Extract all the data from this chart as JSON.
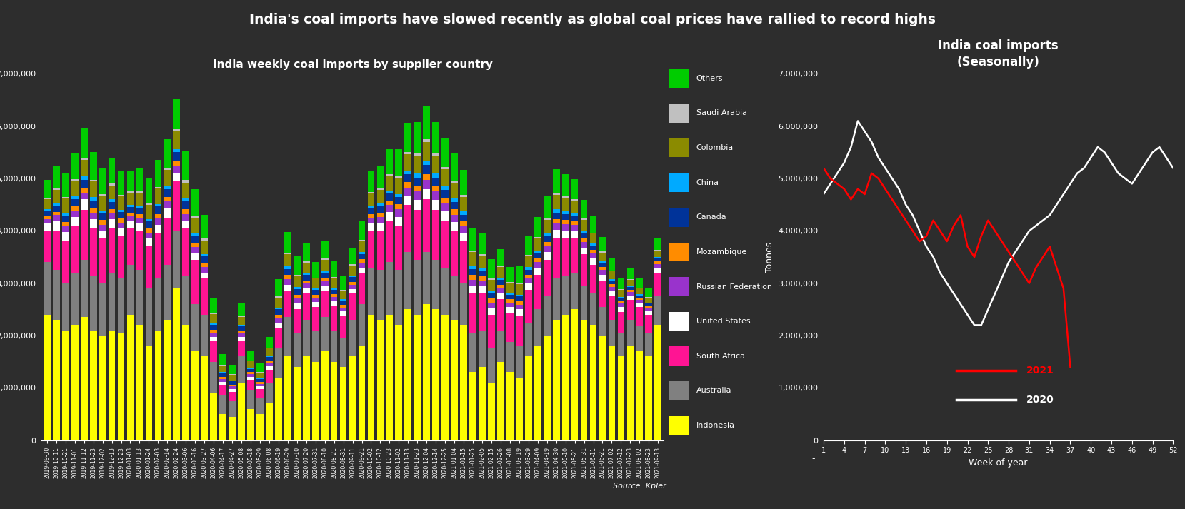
{
  "title": "India's coal imports have slowed recently as global coal prices have rallied to record highs",
  "subtitle_left": "India weekly coal imports by supplier country",
  "subtitle_right": "India coal imports\n(Seasonally)",
  "ylabel_left": "Tonnes",
  "ylabel_right": "Tonnes",
  "xlabel_right": "Week of year",
  "source": "Source: Kpler",
  "background_color": "#2d2d2d",
  "text_color": "#ffffff",
  "categories": [
    "Indonesia",
    "Australia",
    "South Africa",
    "United States",
    "Russian Federation",
    "Mozambique",
    "Canada",
    "China",
    "Colombia",
    "Saudi Arabia",
    "Others"
  ],
  "colors": [
    "#ffff00",
    "#808080",
    "#ff1493",
    "#ffffff",
    "#9933cc",
    "#ff8c00",
    "#003399",
    "#00aaff",
    "#8B8B00",
    "#c0c0c0",
    "#00cc00"
  ],
  "dates": [
    "2019-09-30",
    "2019-10-11",
    "2019-10-21",
    "2019-11-01",
    "2019-11-12",
    "2019-11-23",
    "2019-12-02",
    "2019-12-13",
    "2019-12-23",
    "2020-01-03",
    "2020-01-13",
    "2020-01-24",
    "2020-02-03",
    "2020-02-14",
    "2020-02-24",
    "2020-03-06",
    "2020-03-16",
    "2020-03-27",
    "2020-04-06",
    "2020-04-17",
    "2020-04-27",
    "2020-05-08",
    "2020-05-18",
    "2020-05-29",
    "2020-06-08",
    "2020-06-19",
    "2020-06-29",
    "2020-07-10",
    "2020-07-20",
    "2020-07-31",
    "2020-08-10",
    "2020-08-21",
    "2020-08-31",
    "2020-09-11",
    "2020-09-21",
    "2020-10-02",
    "2020-10-12",
    "2020-10-23",
    "2020-11-02",
    "2020-11-13",
    "2020-11-23",
    "2020-12-04",
    "2020-12-14",
    "2020-12-25",
    "2021-01-04",
    "2021-01-15",
    "2021-01-25",
    "2021-02-05",
    "2021-02-15",
    "2021-02-26",
    "2021-03-08",
    "2021-03-19",
    "2021-03-29",
    "2021-04-09",
    "2021-04-19",
    "2021-04-30",
    "2021-05-10",
    "2021-05-21",
    "2021-05-31",
    "2021-06-11",
    "2021-06-21",
    "2021-07-02",
    "2021-07-12",
    "2021-07-23",
    "2021-08-02",
    "2021-08-23",
    "2021-09-13"
  ],
  "bar_data": {
    "Indonesia": [
      2400000,
      2300000,
      2100000,
      2200000,
      2350000,
      2100000,
      2000000,
      2100000,
      2050000,
      2400000,
      2200000,
      1800000,
      2100000,
      2300000,
      2900000,
      2200000,
      1700000,
      1600000,
      900000,
      500000,
      450000,
      1100000,
      600000,
      500000,
      700000,
      1200000,
      1600000,
      1400000,
      1600000,
      1500000,
      1700000,
      1500000,
      1400000,
      1600000,
      1800000,
      2400000,
      2300000,
      2400000,
      2200000,
      2500000,
      2400000,
      2600000,
      2500000,
      2400000,
      2300000,
      2200000,
      1300000,
      1400000,
      1100000,
      1500000,
      1300000,
      1200000,
      1600000,
      1800000,
      2000000,
      2300000,
      2400000,
      2500000,
      2300000,
      2200000,
      2000000,
      1800000,
      1600000,
      1800000,
      1700000,
      1600000,
      2200000
    ],
    "Australia": [
      1000000,
      950000,
      900000,
      1000000,
      1100000,
      1050000,
      1000000,
      1100000,
      1050000,
      950000,
      1050000,
      1100000,
      1000000,
      1050000,
      1100000,
      950000,
      900000,
      800000,
      600000,
      350000,
      300000,
      500000,
      350000,
      300000,
      400000,
      550000,
      750000,
      650000,
      700000,
      600000,
      650000,
      600000,
      550000,
      700000,
      800000,
      900000,
      950000,
      1000000,
      1050000,
      1100000,
      1050000,
      1000000,
      950000,
      900000,
      850000,
      800000,
      750000,
      700000,
      650000,
      600000,
      580000,
      600000,
      650000,
      700000,
      750000,
      800000,
      750000,
      700000,
      650000,
      600000,
      550000,
      500000,
      450000,
      500000,
      480000,
      460000,
      550000
    ],
    "South Africa": [
      600000,
      750000,
      800000,
      900000,
      950000,
      900000,
      850000,
      850000,
      800000,
      700000,
      750000,
      800000,
      850000,
      900000,
      950000,
      900000,
      850000,
      700000,
      400000,
      200000,
      180000,
      300000,
      200000,
      180000,
      250000,
      400000,
      500000,
      450000,
      500000,
      450000,
      500000,
      460000,
      430000,
      500000,
      600000,
      700000,
      750000,
      800000,
      850000,
      900000,
      950000,
      1000000,
      950000,
      900000,
      850000,
      800000,
      750000,
      700000,
      650000,
      600000,
      560000,
      580000,
      620000,
      660000,
      700000,
      760000,
      700000,
      650000,
      600000,
      550000,
      500000,
      450000,
      400000,
      380000,
      360000,
      340000,
      450000
    ],
    "United States": [
      150000,
      200000,
      180000,
      160000,
      200000,
      180000,
      160000,
      180000,
      160000,
      140000,
      150000,
      160000,
      170000,
      180000,
      160000,
      140000,
      120000,
      100000,
      80000,
      60000,
      50000,
      80000,
      60000,
      50000,
      70000,
      100000,
      120000,
      110000,
      100000,
      90000,
      100000,
      90000,
      80000,
      90000,
      100000,
      140000,
      150000,
      160000,
      170000,
      180000,
      190000,
      200000,
      190000,
      180000,
      170000,
      160000,
      150000,
      140000,
      130000,
      120000,
      110000,
      120000,
      130000,
      140000,
      150000,
      160000,
      150000,
      140000,
      130000,
      120000,
      110000,
      100000,
      90000,
      85000,
      80000,
      75000,
      90000
    ],
    "Russian Federation": [
      80000,
      100000,
      110000,
      120000,
      130000,
      120000,
      110000,
      110000,
      100000,
      90000,
      100000,
      110000,
      120000,
      130000,
      140000,
      130000,
      120000,
      110000,
      80000,
      60000,
      50000,
      70000,
      55000,
      50000,
      65000,
      90000,
      110000,
      100000,
      95000,
      85000,
      90000,
      85000,
      75000,
      85000,
      95000,
      110000,
      120000,
      130000,
      140000,
      150000,
      160000,
      170000,
      160000,
      150000,
      140000,
      130000,
      120000,
      110000,
      100000,
      90000,
      85000,
      90000,
      95000,
      100000,
      110000,
      120000,
      130000,
      120000,
      110000,
      100000,
      90000,
      80000,
      70000,
      65000,
      60000,
      55000,
      70000
    ],
    "Mozambique": [
      50000,
      65000,
      75000,
      85000,
      95000,
      90000,
      85000,
      80000,
      75000,
      65000,
      70000,
      80000,
      85000,
      90000,
      95000,
      90000,
      85000,
      75000,
      55000,
      40000,
      35000,
      45000,
      35000,
      30000,
      40000,
      60000,
      75000,
      65000,
      60000,
      55000,
      60000,
      55000,
      50000,
      55000,
      65000,
      75000,
      80000,
      90000,
      95000,
      100000,
      110000,
      115000,
      110000,
      105000,
      100000,
      90000,
      85000,
      80000,
      75000,
      65000,
      60000,
      65000,
      70000,
      75000,
      80000,
      90000,
      85000,
      80000,
      75000,
      65000,
      60000,
      55000,
      50000,
      48000,
      45000,
      42000,
      55000
    ],
    "Canada": [
      100000,
      120000,
      130000,
      140000,
      150000,
      140000,
      130000,
      130000,
      120000,
      115000,
      120000,
      130000,
      140000,
      150000,
      160000,
      150000,
      140000,
      130000,
      90000,
      70000,
      60000,
      80000,
      65000,
      55000,
      70000,
      100000,
      120000,
      110000,
      100000,
      90000,
      100000,
      90000,
      80000,
      90000,
      100000,
      110000,
      120000,
      130000,
      140000,
      150000,
      160000,
      170000,
      160000,
      150000,
      140000,
      130000,
      120000,
      110000,
      100000,
      90000,
      80000,
      90000,
      95000,
      100000,
      110000,
      120000,
      110000,
      100000,
      90000,
      80000,
      70000,
      60000,
      55000,
      50000,
      45000,
      40000,
      55000
    ],
    "China": [
      30000,
      45000,
      50000,
      55000,
      65000,
      60000,
      55000,
      50000,
      45000,
      35000,
      40000,
      45000,
      50000,
      55000,
      60000,
      55000,
      50000,
      45000,
      30000,
      20000,
      18000,
      25000,
      20000,
      18000,
      22000,
      35000,
      45000,
      40000,
      38000,
      33000,
      38000,
      33000,
      28000,
      33000,
      38000,
      45000,
      50000,
      55000,
      60000,
      65000,
      70000,
      80000,
      75000,
      70000,
      65000,
      60000,
      55000,
      50000,
      45000,
      40000,
      35000,
      40000,
      45000,
      48000,
      55000,
      62000,
      55000,
      50000,
      45000,
      40000,
      35000,
      30000,
      25000,
      22000,
      18000,
      15000,
      25000
    ],
    "Colombia": [
      200000,
      250000,
      270000,
      290000,
      310000,
      300000,
      280000,
      270000,
      255000,
      230000,
      250000,
      270000,
      290000,
      310000,
      330000,
      310000,
      290000,
      260000,
      180000,
      130000,
      110000,
      155000,
      120000,
      105000,
      135000,
      195000,
      235000,
      215000,
      205000,
      185000,
      205000,
      185000,
      165000,
      185000,
      210000,
      240000,
      260000,
      280000,
      300000,
      320000,
      340000,
      360000,
      340000,
      320000,
      300000,
      280000,
      260000,
      240000,
      220000,
      200000,
      185000,
      200000,
      215000,
      230000,
      250000,
      270000,
      250000,
      230000,
      210000,
      190000,
      170000,
      150000,
      130000,
      120000,
      110000,
      100000,
      130000
    ],
    "Saudi Arabia": [
      20000,
      28000,
      32000,
      38000,
      44000,
      40000,
      37000,
      35000,
      32000,
      28000,
      30000,
      35000,
      38000,
      42000,
      46000,
      42000,
      38000,
      32000,
      22000,
      15000,
      13000,
      18000,
      14000,
      12000,
      16000,
      23000,
      28000,
      25000,
      24000,
      21000,
      24000,
      21000,
      19000,
      21000,
      24000,
      28000,
      32000,
      36000,
      40000,
      44000,
      48000,
      52000,
      48000,
      44000,
      42000,
      38000,
      35000,
      32000,
      28000,
      25000,
      22000,
      25000,
      28000,
      32000,
      36000,
      42000,
      38000,
      34000,
      30000,
      26000,
      22000,
      18000,
      15000,
      13000,
      11000,
      9000,
      14000
    ],
    "Others": [
      350000,
      420000,
      460000,
      510000,
      560000,
      530000,
      500000,
      480000,
      455000,
      400000,
      430000,
      470000,
      510000,
      550000,
      590000,
      550000,
      510000,
      450000,
      290000,
      200000,
      175000,
      240000,
      190000,
      170000,
      210000,
      320000,
      390000,
      350000,
      335000,
      300000,
      335000,
      300000,
      265000,
      300000,
      345000,
      400000,
      440000,
      480000,
      520000,
      560000,
      600000,
      640000,
      600000,
      560000,
      520000,
      480000,
      440000,
      400000,
      360000,
      325000,
      295000,
      325000,
      355000,
      385000,
      415000,
      455000,
      420000,
      385000,
      350000,
      315000,
      280000,
      250000,
      220000,
      200000,
      185000,
      170000,
      215000
    ]
  },
  "w2020": [
    1,
    2,
    3,
    4,
    5,
    6,
    7,
    8,
    9,
    10,
    11,
    12,
    13,
    14,
    15,
    16,
    17,
    18,
    19,
    20,
    21,
    22,
    23,
    24,
    25,
    26,
    27,
    28,
    29,
    30,
    31,
    32,
    33,
    34,
    35,
    36,
    37,
    38,
    39,
    40,
    41,
    42,
    43,
    44,
    45,
    46,
    47,
    48,
    49,
    50,
    51,
    52
  ],
  "v2020": [
    4700000,
    4900000,
    5100000,
    5300000,
    5600000,
    6100000,
    5900000,
    5700000,
    5400000,
    5200000,
    5000000,
    4800000,
    4500000,
    4300000,
    4000000,
    3700000,
    3500000,
    3200000,
    3000000,
    2800000,
    2600000,
    2400000,
    2200000,
    2200000,
    2500000,
    2800000,
    3100000,
    3400000,
    3600000,
    3800000,
    4000000,
    4100000,
    4200000,
    4300000,
    4500000,
    4700000,
    4900000,
    5100000,
    5200000,
    5400000,
    5600000,
    5500000,
    5300000,
    5100000,
    5000000,
    4900000,
    5100000,
    5300000,
    5500000,
    5600000,
    5400000,
    5200000
  ],
  "w2021": [
    1,
    2,
    3,
    4,
    5,
    6,
    7,
    8,
    9,
    10,
    11,
    12,
    13,
    14,
    15,
    16,
    17,
    18,
    19,
    20,
    21,
    22,
    23,
    24,
    25,
    26,
    27,
    28,
    29,
    30,
    31,
    32,
    33,
    34,
    35,
    36,
    37
  ],
  "v2021": [
    5200000,
    5000000,
    4900000,
    4800000,
    4600000,
    4800000,
    4700000,
    5100000,
    5000000,
    4800000,
    4600000,
    4400000,
    4200000,
    4000000,
    3800000,
    3900000,
    4200000,
    4000000,
    3800000,
    4100000,
    4300000,
    3700000,
    3500000,
    3900000,
    4200000,
    4000000,
    3800000,
    3600000,
    3400000,
    3200000,
    3000000,
    3300000,
    3500000,
    3700000,
    3300000,
    2900000,
    1400000
  ]
}
